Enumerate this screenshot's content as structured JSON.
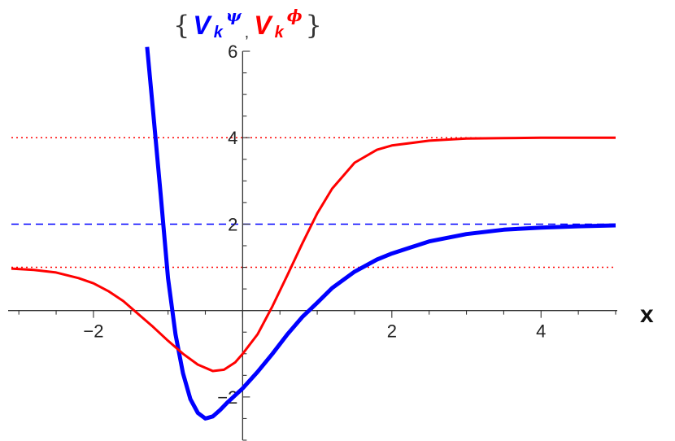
{
  "chart_data": {
    "type": "line",
    "title": {
      "open_brace": "{",
      "close_brace": "}",
      "comma": ",",
      "psi": {
        "base": "V",
        "sub": "k",
        "sup": "ψ",
        "color": "#0000ff"
      },
      "phi": {
        "base": "V",
        "sub": "k",
        "sup": "ϕ",
        "color": "#ff0000"
      }
    },
    "xlabel": "x",
    "ylabel": "",
    "xlim": [
      -3.1,
      5.0
    ],
    "ylim": [
      -3.0,
      6.0
    ],
    "x_ticks": [
      {
        "value": -2,
        "label": "−2"
      },
      {
        "value": 2,
        "label": "2"
      },
      {
        "value": 4,
        "label": "4"
      }
    ],
    "y_ticks": [
      {
        "value": -2,
        "label": "−2"
      },
      {
        "value": 2,
        "label": "2"
      },
      {
        "value": 4,
        "label": "4"
      },
      {
        "value": 6,
        "label": "6"
      }
    ],
    "grid": false,
    "legend": "none",
    "series": [
      {
        "color": "#0000ff",
        "style": "solid-thick",
        "points": [
          [
            -1.28,
            6.1
          ],
          [
            -1.2,
            4.6
          ],
          [
            -1.1,
            2.7
          ],
          [
            -1.0,
            0.75
          ],
          [
            -0.9,
            -0.55
          ],
          [
            -0.8,
            -1.45
          ],
          [
            -0.7,
            -2.05
          ],
          [
            -0.6,
            -2.37
          ],
          [
            -0.5,
            -2.5
          ],
          [
            -0.4,
            -2.45
          ],
          [
            -0.3,
            -2.3
          ],
          [
            -0.2,
            -2.12
          ],
          [
            -0.1,
            -1.96
          ],
          [
            0.0,
            -1.8
          ],
          [
            0.2,
            -1.42
          ],
          [
            0.4,
            -1.0
          ],
          [
            0.6,
            -0.55
          ],
          [
            0.8,
            -0.15
          ],
          [
            1.0,
            0.18
          ],
          [
            1.2,
            0.52
          ],
          [
            1.5,
            0.9
          ],
          [
            1.8,
            1.18
          ],
          [
            2.0,
            1.32
          ],
          [
            2.5,
            1.6
          ],
          [
            3.0,
            1.77
          ],
          [
            3.5,
            1.87
          ],
          [
            4.0,
            1.92
          ],
          [
            4.5,
            1.95
          ],
          [
            5.0,
            1.97
          ]
        ]
      },
      {
        "color": "#ff0000",
        "style": "solid",
        "points": [
          [
            -3.1,
            0.97
          ],
          [
            -2.8,
            0.94
          ],
          [
            -2.5,
            0.88
          ],
          [
            -2.2,
            0.75
          ],
          [
            -2.0,
            0.63
          ],
          [
            -1.8,
            0.45
          ],
          [
            -1.6,
            0.22
          ],
          [
            -1.4,
            -0.08
          ],
          [
            -1.2,
            -0.38
          ],
          [
            -1.0,
            -0.7
          ],
          [
            -0.8,
            -1.0
          ],
          [
            -0.6,
            -1.25
          ],
          [
            -0.4,
            -1.4
          ],
          [
            -0.25,
            -1.37
          ],
          [
            -0.1,
            -1.2
          ],
          [
            0.0,
            -1.0
          ],
          [
            0.2,
            -0.55
          ],
          [
            0.4,
            0.1
          ],
          [
            0.6,
            0.82
          ],
          [
            0.8,
            1.55
          ],
          [
            1.0,
            2.25
          ],
          [
            1.2,
            2.82
          ],
          [
            1.5,
            3.42
          ],
          [
            1.8,
            3.72
          ],
          [
            2.0,
            3.82
          ],
          [
            2.5,
            3.93
          ],
          [
            3.0,
            3.98
          ],
          [
            3.5,
            3.99
          ],
          [
            4.0,
            4.0
          ],
          [
            5.0,
            4.0
          ]
        ]
      }
    ],
    "reference_lines": [
      {
        "y": 4,
        "color": "#ff0000",
        "style": "dotted"
      },
      {
        "y": 1,
        "color": "#ff0000",
        "style": "dotted"
      },
      {
        "y": 2,
        "color": "#0000ff",
        "style": "dashed"
      }
    ]
  }
}
